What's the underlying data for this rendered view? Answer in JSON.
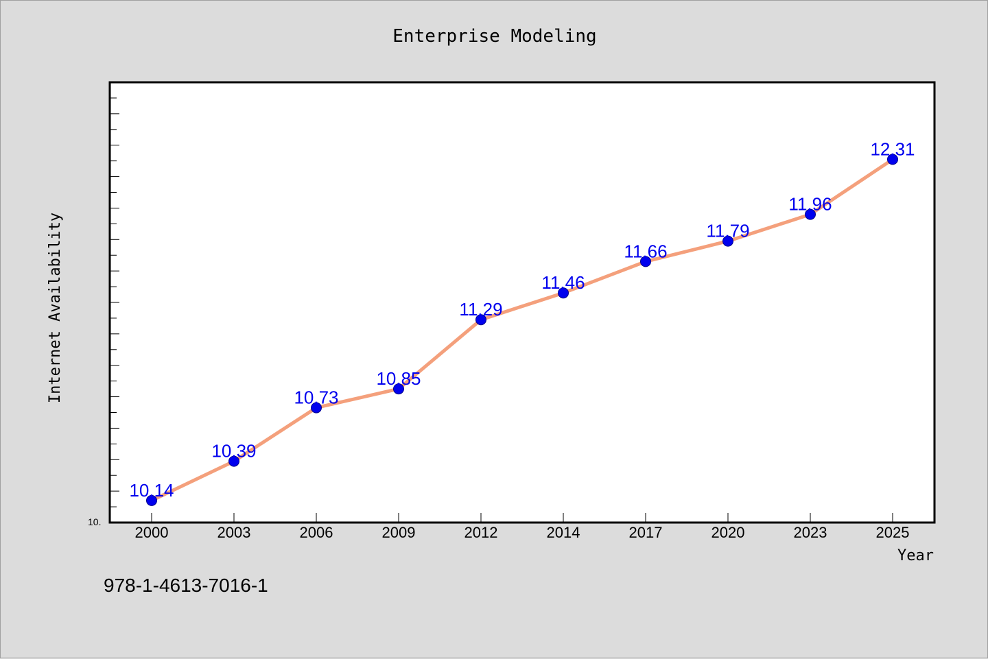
{
  "chart_data": {
    "type": "line",
    "title": "Enterprise Modeling",
    "xlabel": "Year",
    "ylabel": "Internet Availability",
    "ylim": [
      10.0,
      12.8
    ],
    "y_axis_min_label": "10.",
    "categories": [
      "2000",
      "2003",
      "2006",
      "2009",
      "2012",
      "2014",
      "2017",
      "2020",
      "2023",
      "2025"
    ],
    "series": [
      {
        "values": [
          10.14,
          10.39,
          10.73,
          10.85,
          11.29,
          11.46,
          11.66,
          11.79,
          11.96,
          12.31
        ],
        "labels": [
          "10.14",
          "10.39",
          "10.73",
          "10.85",
          "11.29",
          "11.46",
          "11.66",
          "11.79",
          "11.96",
          "12.31"
        ]
      }
    ],
    "grid": false,
    "colors": {
      "line": "#f4a07c",
      "marker": "#0000ee",
      "data_label": "#0000ee",
      "plot_background": "#ffffff",
      "figure_background": "#dcdcdc"
    }
  },
  "footer": {
    "code": "978-1-4613-7016-1"
  }
}
